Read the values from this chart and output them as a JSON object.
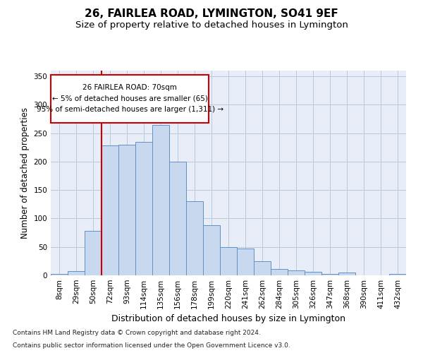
{
  "title": "26, FAIRLEA ROAD, LYMINGTON, SO41 9EF",
  "subtitle": "Size of property relative to detached houses in Lymington",
  "xlabel": "Distribution of detached houses by size in Lymington",
  "ylabel": "Number of detached properties",
  "footnote1": "Contains HM Land Registry data © Crown copyright and database right 2024.",
  "footnote2": "Contains public sector information licensed under the Open Government Licence v3.0.",
  "categories": [
    "8sqm",
    "29sqm",
    "50sqm",
    "72sqm",
    "93sqm",
    "114sqm",
    "135sqm",
    "156sqm",
    "178sqm",
    "199sqm",
    "220sqm",
    "241sqm",
    "262sqm",
    "284sqm",
    "305sqm",
    "326sqm",
    "347sqm",
    "368sqm",
    "390sqm",
    "411sqm",
    "432sqm"
  ],
  "values": [
    2,
    8,
    78,
    228,
    230,
    235,
    265,
    200,
    130,
    88,
    50,
    47,
    25,
    11,
    9,
    6,
    3,
    5,
    0,
    0,
    3
  ],
  "bar_color": "#c8d9ef",
  "bar_edge_color": "#6090c8",
  "highlight_index": 3,
  "highlight_line_color": "#cc0000",
  "annotation_box_text": "26 FAIRLEA ROAD: 70sqm\n← 5% of detached houses are smaller (65)\n95% of semi-detached houses are larger (1,311) →",
  "ylim": [
    0,
    360
  ],
  "yticks": [
    0,
    50,
    100,
    150,
    200,
    250,
    300,
    350
  ],
  "bg_color": "#ffffff",
  "plot_bg_color": "#e8edf8",
  "grid_color": "#b8c8de",
  "title_fontsize": 11,
  "subtitle_fontsize": 9.5,
  "tick_fontsize": 7.5,
  "ylabel_fontsize": 8.5,
  "xlabel_fontsize": 9,
  "ann_fontsize": 7.5,
  "footnote_fontsize": 6.5
}
